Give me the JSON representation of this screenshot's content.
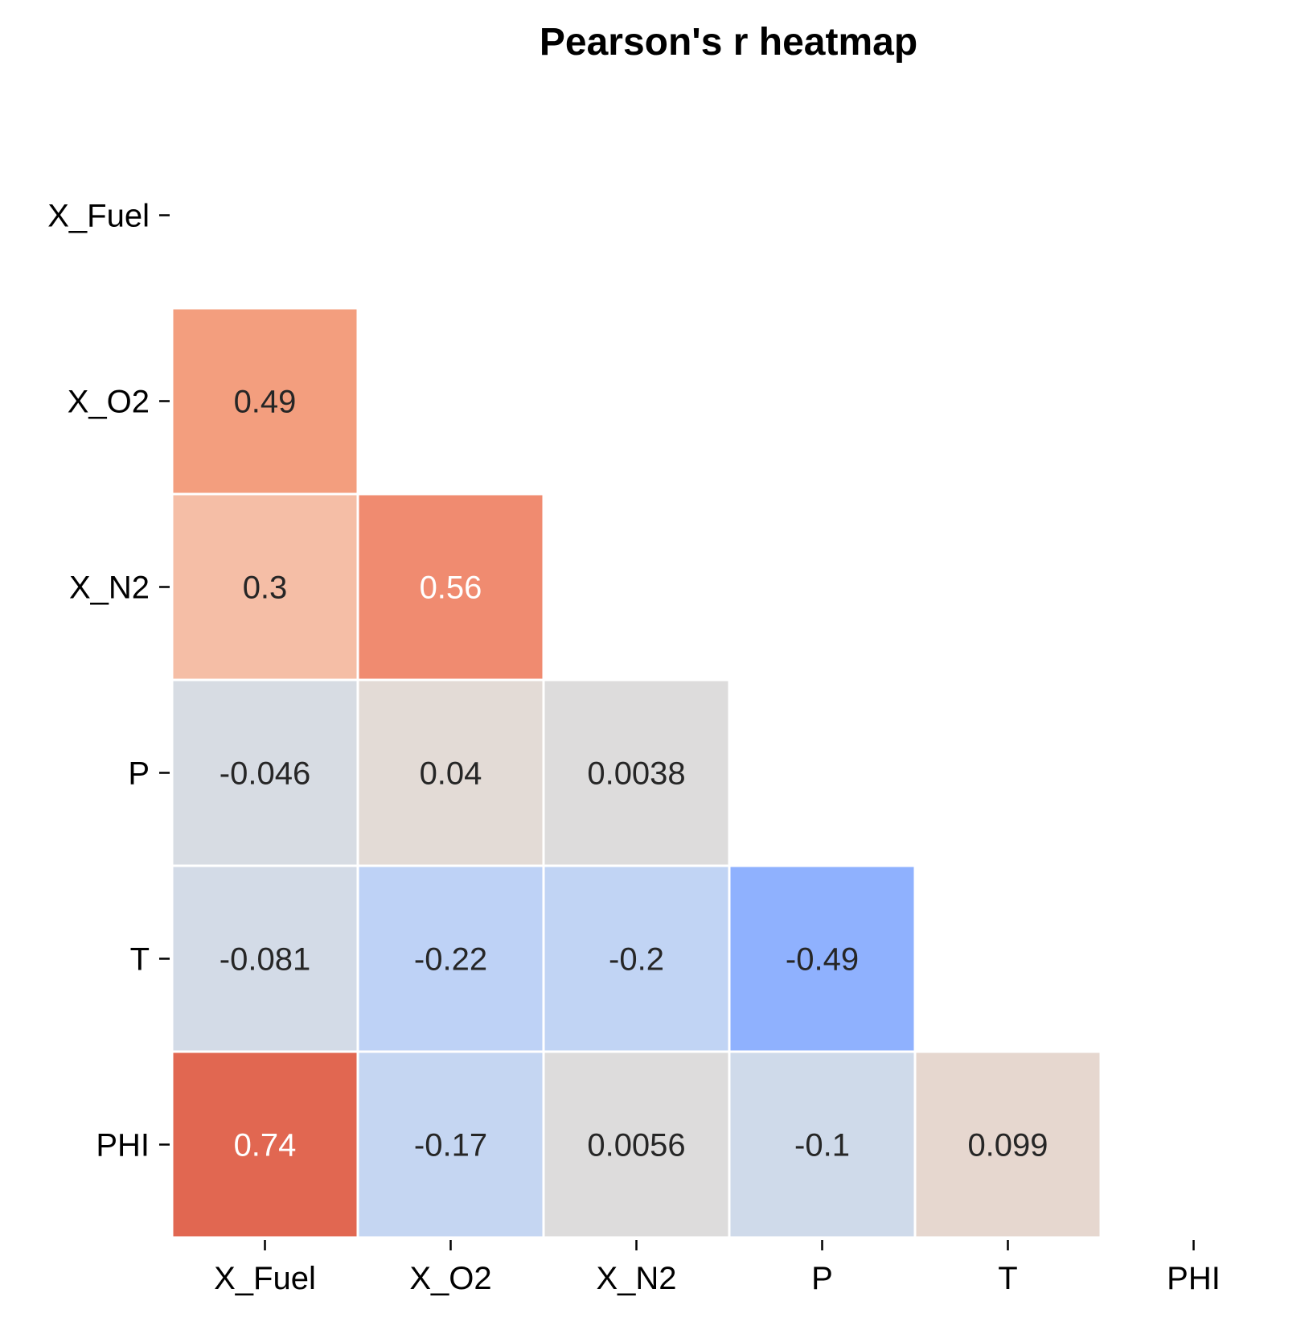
{
  "chart_data": {
    "type": "heatmap",
    "title": "Pearson's r heatmap",
    "xlabel": "",
    "ylabel": "",
    "x_categories": [
      "X_Fuel",
      "X_O2",
      "X_N2",
      "P",
      "T",
      "PHI"
    ],
    "y_categories": [
      "X_Fuel",
      "X_O2",
      "X_N2",
      "P",
      "T",
      "PHI"
    ],
    "mask": "upper triangle including diagonal",
    "colormap": "coolwarm",
    "value_range": [
      -1,
      1
    ],
    "colorbar": false,
    "cells": [
      {
        "row": "X_O2",
        "col": "X_Fuel",
        "value": 0.49,
        "label": "0.49",
        "color": "#f39e7e",
        "text_color": "#262626"
      },
      {
        "row": "X_N2",
        "col": "X_Fuel",
        "value": 0.3,
        "label": "0.3",
        "color": "#f5bea6",
        "text_color": "#262626"
      },
      {
        "row": "X_N2",
        "col": "X_O2",
        "value": 0.56,
        "label": "0.56",
        "color": "#f08b70",
        "text_color": "#ffffff"
      },
      {
        "row": "P",
        "col": "X_Fuel",
        "value": -0.046,
        "label": "-0.046",
        "color": "#d7dce3",
        "text_color": "#262626"
      },
      {
        "row": "P",
        "col": "X_O2",
        "value": 0.04,
        "label": "0.04",
        "color": "#e3dbd6",
        "text_color": "#262626"
      },
      {
        "row": "P",
        "col": "X_N2",
        "value": 0.0038,
        "label": "0.0038",
        "color": "#dddcdc",
        "text_color": "#262626"
      },
      {
        "row": "T",
        "col": "X_Fuel",
        "value": -0.081,
        "label": "-0.081",
        "color": "#d3dbe7",
        "text_color": "#262626"
      },
      {
        "row": "T",
        "col": "X_O2",
        "value": -0.22,
        "label": "-0.22",
        "color": "#bed2f6",
        "text_color": "#262626"
      },
      {
        "row": "T",
        "col": "X_N2",
        "value": -0.2,
        "label": "-0.2",
        "color": "#c1d4f4",
        "text_color": "#262626"
      },
      {
        "row": "T",
        "col": "P",
        "value": -0.49,
        "label": "-0.49",
        "color": "#8fb1fe",
        "text_color": "#262626"
      },
      {
        "row": "PHI",
        "col": "X_Fuel",
        "value": 0.74,
        "label": "0.74",
        "color": "#e16751",
        "text_color": "#ffffff"
      },
      {
        "row": "PHI",
        "col": "X_O2",
        "value": -0.17,
        "label": "-0.17",
        "color": "#c5d6f2",
        "text_color": "#262626"
      },
      {
        "row": "PHI",
        "col": "X_N2",
        "value": 0.0056,
        "label": "0.0056",
        "color": "#dddcdc",
        "text_color": "#262626"
      },
      {
        "row": "PHI",
        "col": "P",
        "value": -0.1,
        "label": "-0.1",
        "color": "#cfdaea",
        "text_color": "#262626"
      },
      {
        "row": "PHI",
        "col": "T",
        "value": 0.099,
        "label": "0.099",
        "color": "#e6d7cf",
        "text_color": "#262626"
      }
    ]
  }
}
